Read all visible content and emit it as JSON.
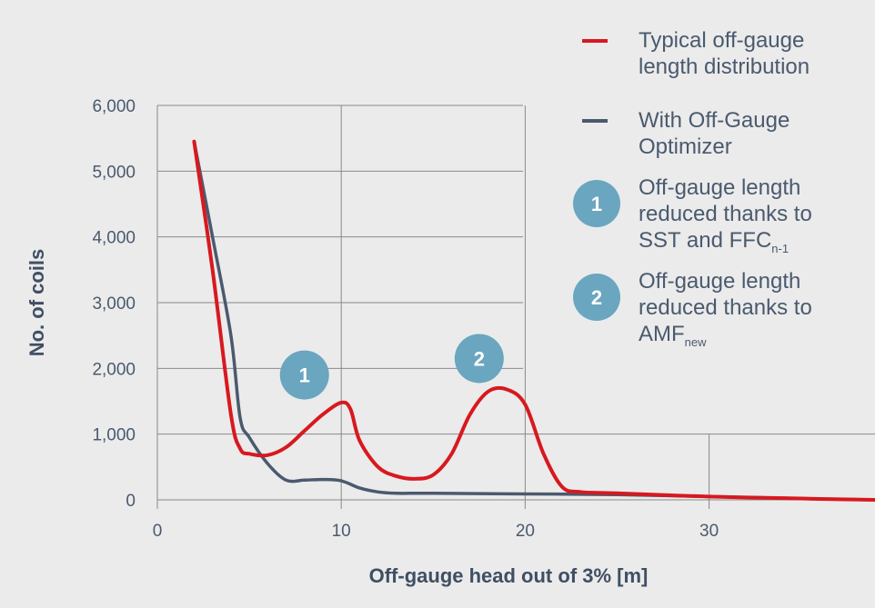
{
  "chart_data": {
    "type": "line",
    "xlabel": "Off-gauge head out of 3% [m]",
    "ylabel": "No. of coils",
    "xlim": [
      0,
      39
    ],
    "ylim": [
      0,
      6000
    ],
    "x_ticks": [
      "0",
      "10",
      "20",
      "30"
    ],
    "y_ticks": [
      "0",
      "1,000",
      "2,000",
      "3,000",
      "4,000",
      "5,000",
      "6,000"
    ],
    "grid": true,
    "legend_position": "right",
    "series": [
      {
        "name": "Typical off-gauge length distribution",
        "color": "#d7191f",
        "x": [
          2,
          3,
          4,
          4.5,
          5,
          6,
          7,
          8,
          9,
          10,
          10.5,
          11,
          12,
          13,
          14,
          15,
          16,
          17,
          18,
          19,
          20,
          21,
          22,
          23,
          25,
          30,
          35,
          39
        ],
        "y": [
          5450,
          3500,
          1300,
          780,
          700,
          680,
          800,
          1050,
          1300,
          1480,
          1380,
          900,
          500,
          360,
          320,
          380,
          700,
          1300,
          1650,
          1680,
          1450,
          700,
          200,
          120,
          100,
          50,
          20,
          0
        ]
      },
      {
        "name": "With Off-Gauge Optimizer",
        "color": "#4a5a6e",
        "x": [
          2,
          3,
          4,
          4.5,
          5,
          6,
          7,
          8,
          9,
          10,
          11,
          12,
          13,
          15,
          20,
          25,
          30,
          35,
          39
        ],
        "y": [
          5450,
          4000,
          2500,
          1250,
          950,
          550,
          300,
          300,
          310,
          290,
          180,
          120,
          100,
          100,
          90,
          80,
          50,
          20,
          0
        ]
      }
    ],
    "annotations": [
      {
        "label": "1",
        "x": 8,
        "y": 1900,
        "text": "Off-gauge length reduced thanks to SST and FFC",
        "subscript": "n-1"
      },
      {
        "label": "2",
        "x": 17.5,
        "y": 2150,
        "text": "Off-gauge length reduced thanks to AMF",
        "subscript": "new"
      }
    ]
  },
  "legend": {
    "item1_line1": "Typical off-gauge",
    "item1_line2": "length distribution",
    "item2_line1": "With Off-Gauge",
    "item2_line2": "Optimizer",
    "item3_line1": "Off-gauge length",
    "item3_line2": "reduced thanks to",
    "item3_line3": "SST and FFC",
    "item3_sub": "n-1",
    "item4_line1": "Off-gauge length",
    "item4_line2": "reduced thanks to",
    "item4_line3": "AMF",
    "item4_sub": "new"
  }
}
